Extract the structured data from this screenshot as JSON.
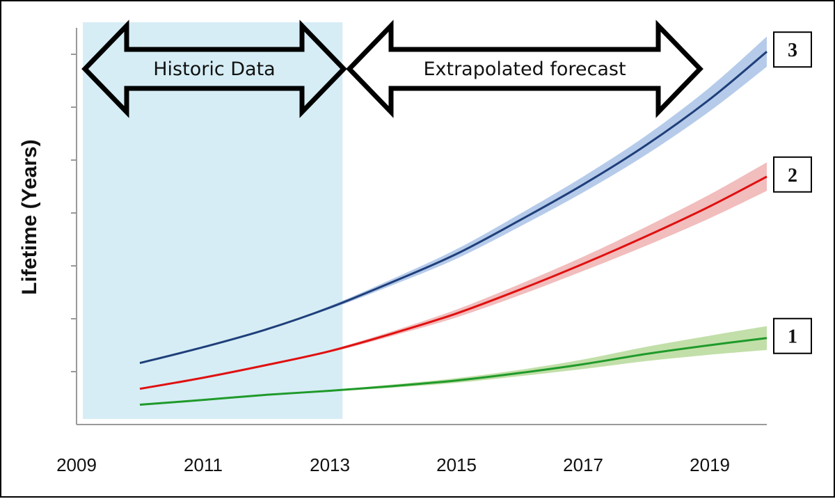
{
  "chart_data": {
    "type": "line",
    "ylabel": "Lifetime (Years)",
    "xlabel": "",
    "x_ticks": [
      "2009",
      "2011",
      "2013",
      "2015",
      "2017",
      "2019"
    ],
    "xlim": [
      2009,
      2019.9
    ],
    "ylim": [
      0,
      1
    ],
    "y_ticks_labeled": false,
    "grid": false,
    "regions": [
      {
        "label": "Historic Data",
        "from": 2009.1,
        "to": 2013.2,
        "color": "#d6edf5"
      },
      {
        "label": "Extrapolated forecast",
        "from": 2013.2,
        "to": 2019.0,
        "color": "none"
      }
    ],
    "series": [
      {
        "name": "3",
        "color": "#1f3f7a",
        "band_color": "#a9c2e6",
        "x": [
          2010.0,
          2011.0,
          2012.0,
          2013.0,
          2014.0,
          2015.0,
          2016.0,
          2017.0,
          2018.0,
          2019.0,
          2019.9
        ],
        "y": [
          0.155,
          0.195,
          0.24,
          0.295,
          0.36,
          0.43,
          0.515,
          0.605,
          0.705,
          0.82,
          0.94
        ],
        "band": [
          0.0,
          0.0,
          0.0,
          0.004,
          0.008,
          0.012,
          0.016,
          0.02,
          0.024,
          0.03,
          0.038
        ]
      },
      {
        "name": "2",
        "color": "#e01010",
        "band_color": "#efb1b1",
        "x": [
          2010.0,
          2011.0,
          2012.0,
          2013.0,
          2014.0,
          2015.0,
          2016.0,
          2017.0,
          2018.0,
          2019.0,
          2019.9
        ],
        "y": [
          0.09,
          0.118,
          0.15,
          0.185,
          0.23,
          0.28,
          0.34,
          0.405,
          0.475,
          0.55,
          0.625
        ],
        "band": [
          0.0,
          0.0,
          0.0,
          0.003,
          0.006,
          0.01,
          0.014,
          0.018,
          0.024,
          0.03,
          0.036
        ]
      },
      {
        "name": "1",
        "color": "#1f9a2a",
        "band_color": "#b7d99a",
        "x": [
          2010.0,
          2011.0,
          2012.0,
          2013.0,
          2014.0,
          2015.0,
          2016.0,
          2017.0,
          2018.0,
          2019.0,
          2019.9
        ],
        "y": [
          0.05,
          0.062,
          0.075,
          0.085,
          0.097,
          0.111,
          0.13,
          0.152,
          0.178,
          0.2,
          0.218
        ],
        "band": [
          0.0,
          0.0,
          0.0,
          0.002,
          0.004,
          0.006,
          0.008,
          0.012,
          0.018,
          0.024,
          0.03
        ]
      }
    ]
  }
}
